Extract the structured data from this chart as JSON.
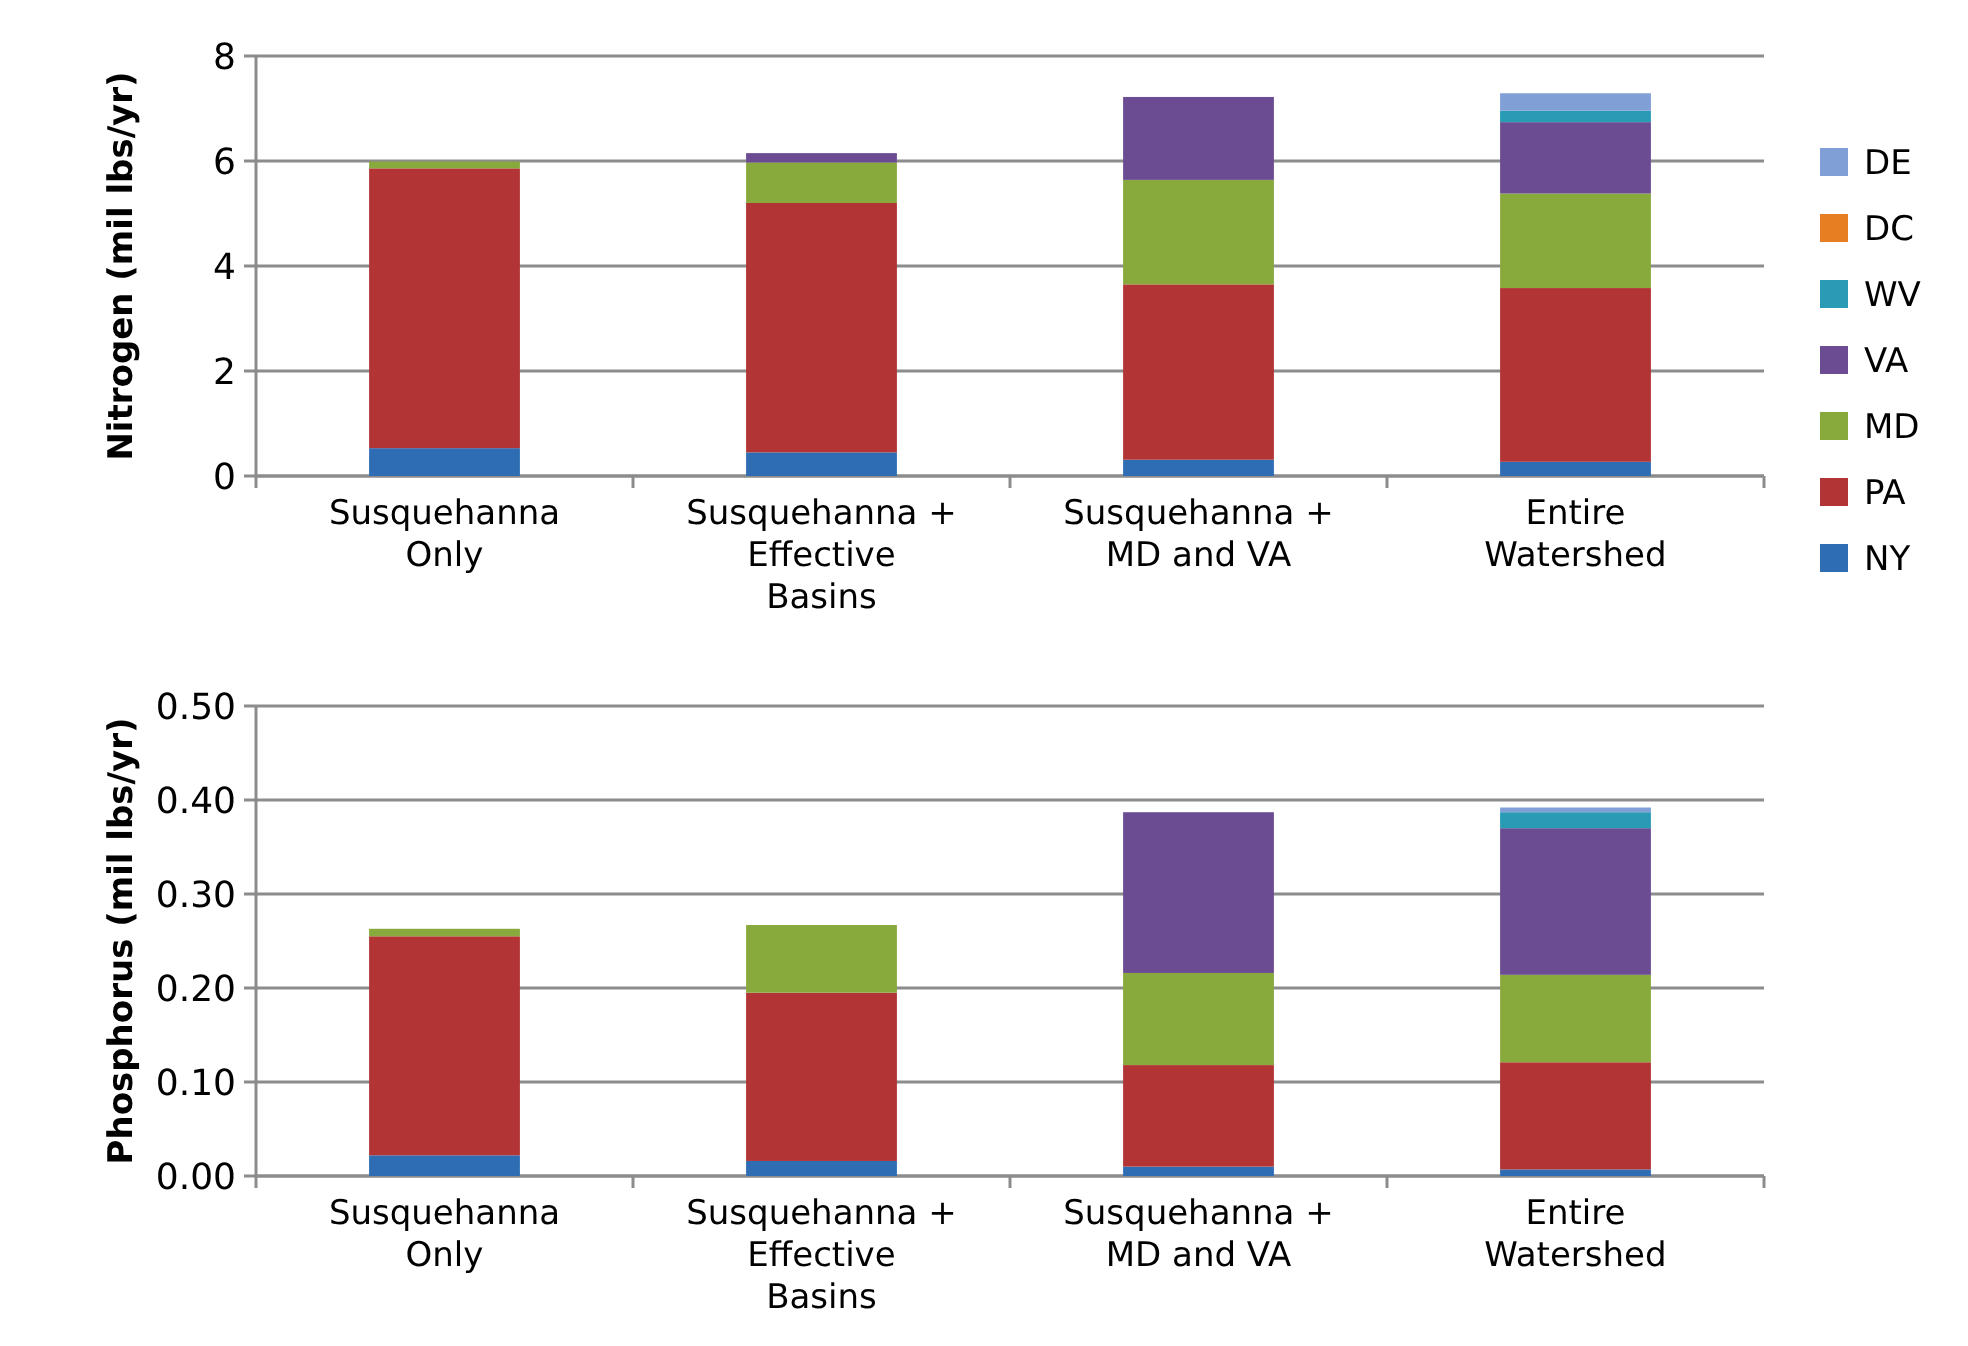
{
  "chart_data": [
    {
      "type": "bar",
      "stacked": true,
      "ylabel": "Nitrogen (mil lbs/yr)",
      "categories": [
        "Susquehanna Only",
        "Susquehanna + Effective Basins",
        "Susquehanna + MD and VA",
        "Entire Watershed"
      ],
      "ylim": [
        0,
        8
      ],
      "yticks": [
        0,
        2,
        4,
        6,
        8
      ],
      "grid": "y",
      "legend": "right",
      "series": [
        {
          "name": "NY",
          "color": "#2e6db4",
          "values": [
            0.53,
            0.45,
            0.31,
            0.27
          ]
        },
        {
          "name": "PA",
          "color": "#b33434",
          "values": [
            5.33,
            4.75,
            3.34,
            3.31
          ]
        },
        {
          "name": "MD",
          "color": "#88aa3c",
          "values": [
            0.13,
            0.77,
            1.99,
            1.8
          ]
        },
        {
          "name": "VA",
          "color": "#6b4c93",
          "values": [
            0,
            0.18,
            1.58,
            1.36
          ]
        },
        {
          "name": "WV",
          "color": "#2a9bb5",
          "values": [
            0,
            0,
            0,
            0.22
          ]
        },
        {
          "name": "DC",
          "color": "#e87e22",
          "values": [
            0,
            0,
            0,
            0
          ]
        },
        {
          "name": "DE",
          "color": "#7f9fd6",
          "values": [
            0,
            0,
            0,
            0.33
          ]
        }
      ]
    },
    {
      "type": "bar",
      "stacked": true,
      "ylabel": "Phosphorus (mil lbs/yr)",
      "categories": [
        "Susquehanna Only",
        "Susquehanna + Effective Basins",
        "Susquehanna + MD and VA",
        "Entire Watershed"
      ],
      "ylim": [
        0,
        0.5
      ],
      "yticks": [
        {
          "value": 0,
          "label": "0.00"
        },
        {
          "value": 0.1,
          "label": "0.10"
        },
        {
          "value": 0.2,
          "label": "0.20"
        },
        {
          "value": 0.3,
          "label": "0.30"
        },
        {
          "value": 0.4,
          "label": "0.40"
        },
        {
          "value": 0.5,
          "label": "0.50"
        }
      ],
      "grid": "y",
      "legend": false,
      "series": [
        {
          "color": "#2e6db4",
          "values": [
            0.022,
            0.016,
            0.01,
            0.007
          ]
        },
        {
          "color": "#b33434",
          "values": [
            0.233,
            0.179,
            0.108,
            0.114
          ]
        },
        {
          "color": "#88aa3c",
          "values": [
            0.008,
            0.072,
            0.098,
            0.093
          ]
        },
        {
          "color": "#6b4c93",
          "values": [
            0,
            0,
            0.171,
            0.156
          ]
        },
        {
          "color": "#2a9bb5",
          "values": [
            0,
            0,
            0,
            0.017
          ]
        },
        {
          "color": "#e87e22",
          "values": [
            0,
            0,
            0,
            0
          ]
        },
        {
          "color": "#7f9fd6",
          "values": [
            0,
            0,
            0,
            0.005
          ]
        }
      ]
    }
  ]
}
